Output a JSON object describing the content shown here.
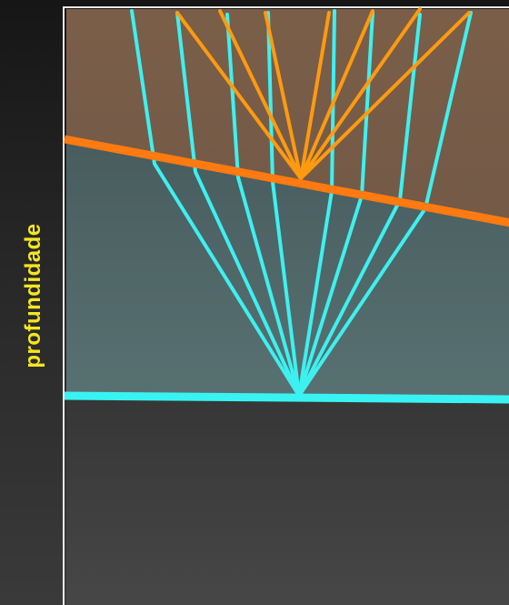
{
  "axis": {
    "label": "profundidade"
  },
  "colors": {
    "label": "#f5e61f",
    "upper_layer": "#7a5e47",
    "middle_layer": "#4f6566",
    "lower_layer": "#3d3d3d",
    "reflector_1": "#ff7a10",
    "reflector_2": "#39f3f3",
    "rays_shallow": "#ff9a10",
    "rays_deep": "#3ef0f0",
    "frame": "#e8e8e8"
  },
  "layers": [
    "upper-layer",
    "middle-layer",
    "lower-layer"
  ],
  "reflectors": [
    "dipping-reflector",
    "flat-reflector"
  ]
}
